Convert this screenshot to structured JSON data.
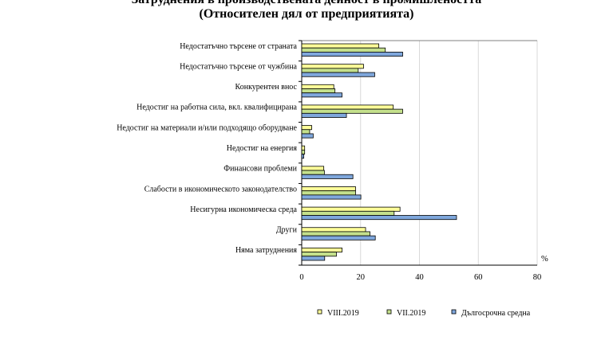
{
  "chart_data": {
    "type": "bar",
    "orientation": "horizontal",
    "title": "Затруднения в производствената дейност в промишлеността",
    "subtitle": "(Относителен дял от предприятията)",
    "xlabel": "%",
    "xlim": [
      0,
      80
    ],
    "xticks": [
      "0",
      "20",
      "40",
      "60",
      "80"
    ],
    "grid": true,
    "legend": "bottom",
    "categories": [
      "Недостатъчно търсене от страната",
      "Недостатъчно търсене от чужбина",
      "Конкурентен внос",
      "Недостиг на работна сила, вкл. квалифицирана",
      "Недостиг на материали и/или подходящо оборудване",
      "Недостиг на енергия",
      "Финансови проблеми",
      "Слабости в икономическото законодателство",
      "Несигурна икономическа среда",
      "Други",
      "Няма затруднения"
    ],
    "series": [
      {
        "name": "VIII.2019",
        "color": "#ffff99",
        "values": [
          26.2,
          21.0,
          10.9,
          31.1,
          3.4,
          1.0,
          7.5,
          18.3,
          33.4,
          21.7,
          13.7
        ]
      },
      {
        "name": "VII.2019",
        "color": "#c4e08c",
        "values": [
          28.4,
          19.2,
          11.3,
          34.3,
          2.7,
          1.0,
          7.7,
          18.3,
          31.4,
          23.2,
          11.8
        ]
      },
      {
        "name": "Дългосрочна средна",
        "color": "#7fa7dc",
        "values": [
          34.3,
          24.8,
          13.7,
          15.2,
          3.9,
          0.7,
          17.4,
          20.1,
          52.6,
          25.0,
          7.8
        ]
      }
    ]
  }
}
